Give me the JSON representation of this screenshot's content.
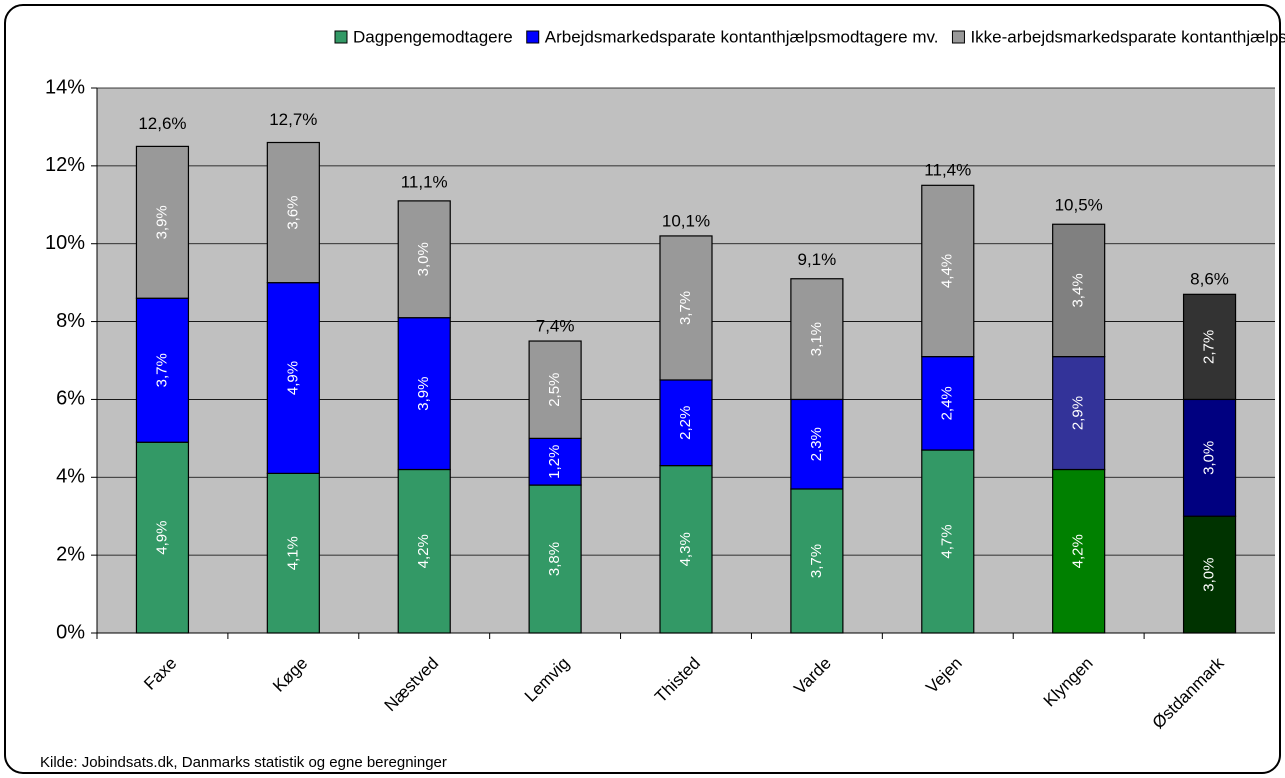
{
  "chart_data": {
    "type": "stacked_bar",
    "categories": [
      "Faxe",
      "Køge",
      "Næstved",
      "Lemvig",
      "Thisted",
      "Varde",
      "Vejen",
      "Klyngen",
      "Østdanmark"
    ],
    "series": [
      {
        "name": "Dagpengemodtagere",
        "color": "#339966",
        "point_colors": {
          "7": "#008000",
          "8": "#003300"
        },
        "values": [
          4.9,
          4.1,
          4.2,
          3.8,
          4.3,
          3.7,
          4.7,
          4.2,
          3.0
        ],
        "value_labels": [
          "4,9%",
          "4,1%",
          "4,2%",
          "3,8%",
          "4,3%",
          "3,7%",
          "4,7%",
          "4,2%",
          "3,0%"
        ]
      },
      {
        "name": "Arbejdsmarkedsparate kontanthjælpsmodtagere mv.",
        "color": "#0000ff",
        "point_colors": {
          "7": "#333399",
          "8": "#000080"
        },
        "values": [
          3.7,
          4.9,
          3.9,
          1.2,
          2.2,
          2.3,
          2.4,
          2.9,
          3.0
        ],
        "value_labels": [
          "3,7%",
          "4,9%",
          "3,9%",
          "1,2%",
          "2,2%",
          "2,3%",
          "2,4%",
          "2,9%",
          "3,0%"
        ]
      },
      {
        "name": "Ikke-arbejdsmarkedsparate kontanthjælpsmodtagere mv.",
        "color": "#999999",
        "point_colors": {
          "7": "#808080",
          "8": "#333333"
        },
        "values": [
          3.9,
          3.6,
          3.0,
          2.5,
          3.7,
          3.1,
          4.4,
          3.4,
          2.7
        ],
        "value_labels": [
          "3,9%",
          "3,6%",
          "3,0%",
          "2,5%",
          "3,7%",
          "3,1%",
          "4,4%",
          "3,4%",
          "2,7%"
        ]
      }
    ],
    "totals": {
      "values": [
        12.6,
        12.7,
        11.1,
        7.4,
        10.1,
        9.1,
        11.4,
        10.5,
        8.6
      ],
      "value_labels": [
        "12,6%",
        "12,7%",
        "11,1%",
        "7,4%",
        "10,1%",
        "9,1%",
        "11,4%",
        "10,5%",
        "8,6%"
      ]
    },
    "ylim": [
      0,
      14
    ],
    "yticks": [
      {
        "value": 0,
        "label": "0%"
      },
      {
        "value": 2,
        "label": "2%"
      },
      {
        "value": 4,
        "label": "4%"
      },
      {
        "value": 6,
        "label": "6%"
      },
      {
        "value": 8,
        "label": "8%"
      },
      {
        "value": 10,
        "label": "10%"
      },
      {
        "value": 12,
        "label": "12%"
      },
      {
        "value": 14,
        "label": "14%"
      }
    ],
    "grid": true,
    "legend": "top",
    "source": "Kilde: Jobindsats.dk, Danmarks statistik og egne beregninger"
  }
}
